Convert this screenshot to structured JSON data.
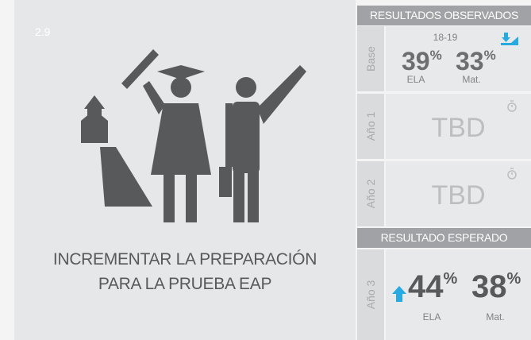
{
  "badge": "2.9",
  "title": [
    "INCREMENTAR LA PREPARACIÓN",
    "PARA LA PRUEBA EAP"
  ],
  "observed": {
    "header": "RESULTADOS OBSERVADOS",
    "base": {
      "label": "Base",
      "year": "18-19",
      "ela": {
        "value": 39,
        "unit": "%",
        "name": "ELA"
      },
      "math": {
        "value": 33,
        "unit": "%",
        "name": "Mat."
      }
    },
    "year1": {
      "label": "Año 1",
      "status": "TBD"
    },
    "year2": {
      "label": "Año 2",
      "status": "TBD"
    }
  },
  "expected": {
    "header": "RESULTADO ESPERADO",
    "year3": {
      "label": "Año 3",
      "ela": {
        "value": 44,
        "unit": "%",
        "name": "ELA"
      },
      "math": {
        "value": 38,
        "unit": "%",
        "name": "Mat."
      }
    }
  }
}
